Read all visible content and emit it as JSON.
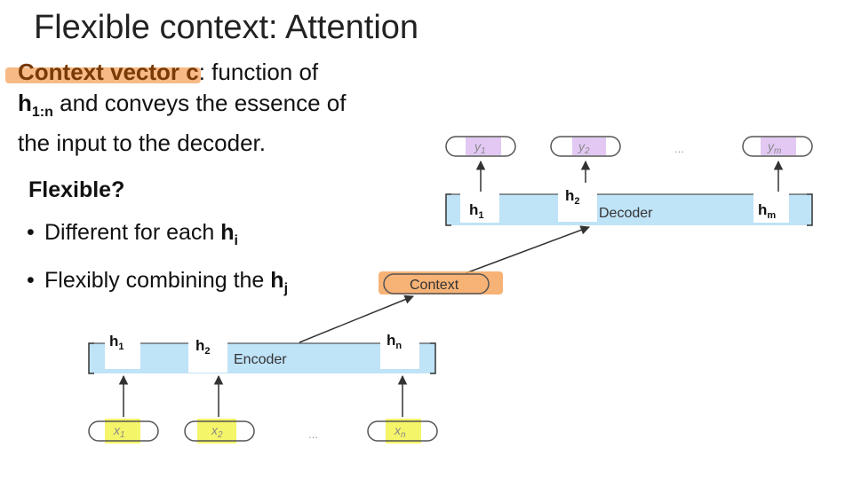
{
  "slide": {
    "title": "Flexible context: Attention",
    "context_definition": {
      "term_prefix": "Context vector ",
      "term_highlighted_tail": "c",
      "after_term": ":  function of",
      "h_symbol": "h",
      "h_subscript": "1:n",
      "rest_line": " and conveys the essence of",
      "line3": "the input to the decoder."
    },
    "flexible_heading": "Flexible?",
    "bullets": [
      {
        "bullet": "•",
        "text": "Different for each ",
        "symbol": "h",
        "subscript": "i"
      },
      {
        "bullet": "•",
        "text": "Flexibly combining the ",
        "symbol": "h",
        "subscript": "j"
      }
    ]
  },
  "diagram": {
    "encoder": {
      "label": "Encoder",
      "hidden_states": [
        {
          "symbol": "h",
          "subscript": "1"
        },
        {
          "symbol": "h",
          "subscript": "2"
        },
        {
          "symbol": "h",
          "subscript": "n"
        }
      ],
      "inputs": [
        {
          "symbol": "x",
          "subscript": "1"
        },
        {
          "symbol": "x",
          "subscript": "2"
        },
        {
          "symbol": "x",
          "subscript": "n"
        }
      ],
      "ellipsis": "..."
    },
    "context": {
      "label": "Context"
    },
    "decoder": {
      "label": "Decoder",
      "hidden_states": [
        {
          "symbol": "h",
          "subscript": "1"
        },
        {
          "symbol": "h",
          "subscript": "2"
        },
        {
          "symbol": "h",
          "subscript": "m"
        }
      ],
      "outputs": [
        {
          "symbol": "y",
          "subscript": "1"
        },
        {
          "symbol": "y",
          "subscript": "2"
        },
        {
          "symbol": "y",
          "subscript": "m"
        }
      ],
      "ellipsis": "..."
    },
    "colors": {
      "band": "#bfe3f7",
      "highlight_yellow": "#f5f56a",
      "highlight_orange": "#f6a55e",
      "token_purple": "#e2c8f3",
      "arrow": "#333333"
    }
  }
}
